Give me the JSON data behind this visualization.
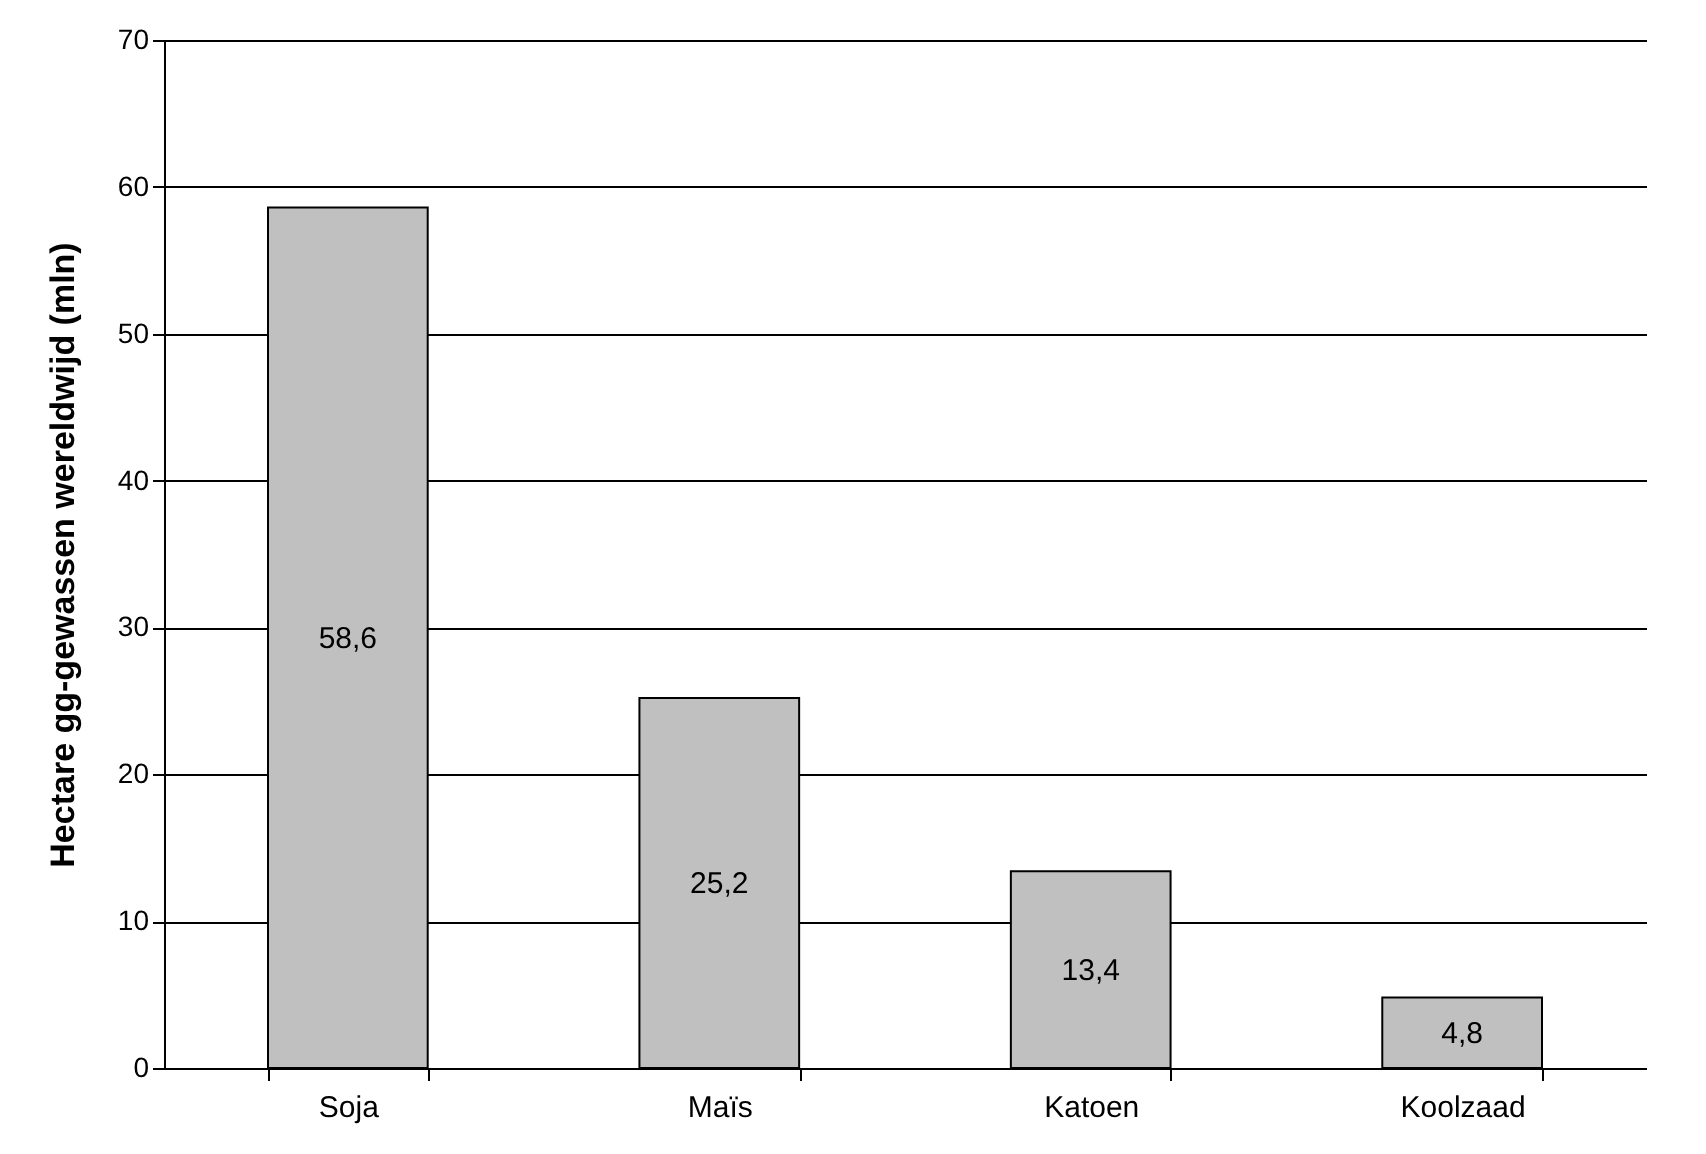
{
  "chart_data": {
    "type": "bar",
    "ylabel": "Hectare gg-gewassen wereldwijd (mln)",
    "categories": [
      "Soja",
      "Maïs",
      "Katoen",
      "Koolzaad"
    ],
    "values": [
      58.6,
      25.2,
      13.4,
      4.8
    ],
    "value_labels": [
      "58,6",
      "25,2",
      "13,4",
      "4,8"
    ],
    "color": "#c0c0c0",
    "ylim": [
      0,
      70
    ],
    "yticks": [
      0,
      10,
      20,
      30,
      40,
      50,
      60,
      70
    ],
    "grid": "y"
  }
}
